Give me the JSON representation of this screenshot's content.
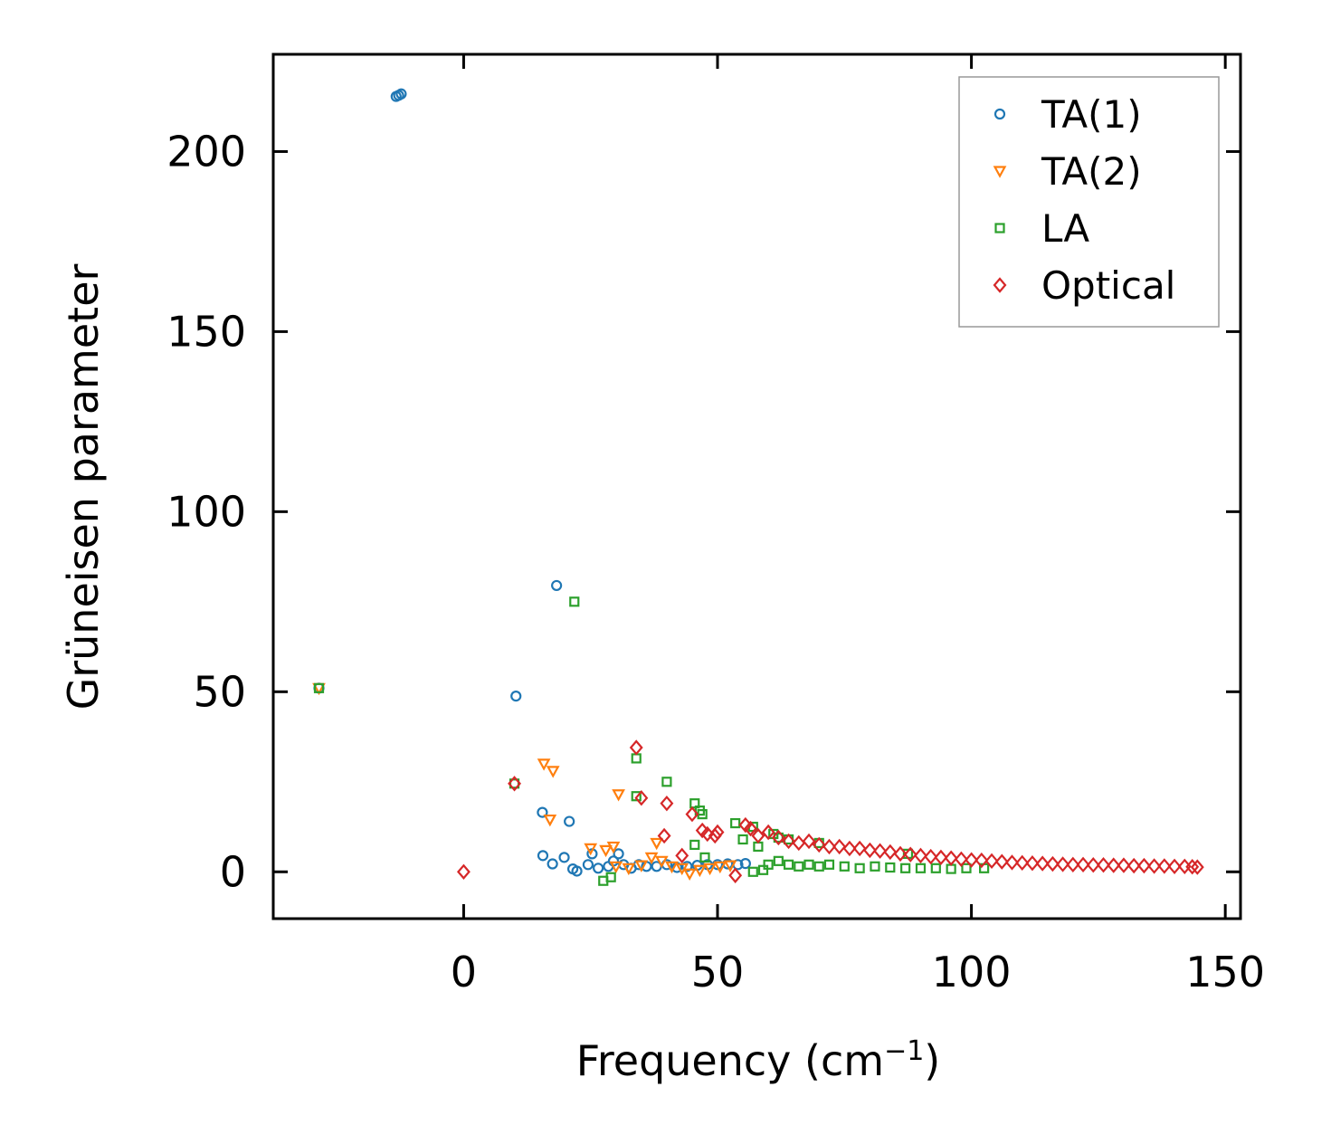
{
  "chart_data": {
    "type": "scatter",
    "title": "",
    "xlabel": "Frequency (cm",
    "xlabel_sup": "−1",
    "xlabel_close": ")",
    "ylabel": "Grüneisen parameter",
    "xlim": [
      -37.5,
      153
    ],
    "ylim": [
      -13,
      227
    ],
    "xticks": [
      0,
      50,
      100,
      150
    ],
    "yticks": [
      0,
      50,
      100,
      150,
      200
    ],
    "xtick_labels": [
      "0",
      "50",
      "100",
      "150"
    ],
    "ytick_labels": [
      "0",
      "50",
      "100",
      "150",
      "200"
    ],
    "legend_position": "top-right",
    "grid": false,
    "series": [
      {
        "name": "TA(1)",
        "marker": "circle",
        "color": "#1f77b4",
        "points": [
          [
            -13.3,
            215.3
          ],
          [
            -12.8,
            215.6
          ],
          [
            -12.3,
            216.0
          ],
          [
            -28.5,
            51.0
          ],
          [
            18.3,
            79.5
          ],
          [
            10.3,
            48.8
          ],
          [
            15.5,
            16.5
          ],
          [
            20.8,
            14.0
          ],
          [
            15.6,
            4.5
          ],
          [
            17.5,
            2.2
          ],
          [
            19.8,
            4.0
          ],
          [
            21.5,
            0.8
          ],
          [
            22.3,
            0.2
          ],
          [
            24.5,
            2.0
          ],
          [
            25.3,
            5.0
          ],
          [
            26.5,
            1.0
          ],
          [
            28.5,
            1.5
          ],
          [
            29.5,
            3.0
          ],
          [
            30.5,
            5.0
          ],
          [
            31.5,
            2.0
          ],
          [
            33.0,
            1.0
          ],
          [
            34.5,
            2.0
          ],
          [
            36.0,
            1.5
          ],
          [
            38.0,
            1.5
          ],
          [
            40.0,
            2.0
          ],
          [
            42.0,
            1.2
          ],
          [
            44.0,
            1.5
          ],
          [
            46.0,
            1.8
          ],
          [
            48.0,
            2.0
          ],
          [
            50.0,
            2.0
          ],
          [
            52.0,
            2.2
          ],
          [
            54.0,
            2.0
          ],
          [
            55.5,
            2.3
          ]
        ]
      },
      {
        "name": "TA(2)",
        "marker": "triangle-down",
        "color": "#ff7f0e",
        "points": [
          [
            -28.5,
            51.0
          ],
          [
            15.8,
            30.0
          ],
          [
            17.6,
            28.0
          ],
          [
            17.0,
            14.5
          ],
          [
            30.5,
            21.5
          ],
          [
            38.0,
            8.0
          ],
          [
            25.0,
            6.5
          ],
          [
            28.0,
            6.0
          ],
          [
            29.5,
            7.0
          ],
          [
            30.0,
            1.5
          ],
          [
            32.5,
            1.0
          ],
          [
            35.0,
            1.8
          ],
          [
            37.0,
            4.0
          ],
          [
            39.0,
            3.0
          ],
          [
            41.0,
            1.5
          ],
          [
            43.0,
            1.0
          ],
          [
            44.5,
            -0.5
          ],
          [
            46.5,
            0.5
          ],
          [
            48.5,
            1.0
          ],
          [
            50.5,
            1.5
          ],
          [
            52.5,
            1.8
          ]
        ]
      },
      {
        "name": "LA",
        "marker": "square",
        "color": "#2ca02c",
        "points": [
          [
            -28.5,
            51.0
          ],
          [
            21.8,
            75.0
          ],
          [
            10.0,
            24.5
          ],
          [
            34.0,
            31.5
          ],
          [
            34.0,
            21.0
          ],
          [
            40.0,
            25.0
          ],
          [
            45.5,
            19.0
          ],
          [
            46.5,
            17.0
          ],
          [
            47.0,
            16.0
          ],
          [
            53.5,
            13.5
          ],
          [
            55.0,
            9.0
          ],
          [
            57.0,
            12.5
          ],
          [
            58.0,
            7.0
          ],
          [
            61.0,
            10.5
          ],
          [
            62.0,
            9.5
          ],
          [
            64.0,
            9.0
          ],
          [
            70.0,
            8.0
          ],
          [
            87.5,
            5.0
          ],
          [
            27.5,
            -2.5
          ],
          [
            29.0,
            -1.5
          ],
          [
            45.5,
            7.5
          ],
          [
            47.5,
            4.0
          ],
          [
            57.0,
            0.0
          ],
          [
            59.0,
            0.5
          ],
          [
            60.0,
            2.0
          ],
          [
            62.0,
            3.0
          ],
          [
            64.0,
            2.0
          ],
          [
            66.0,
            1.5
          ],
          [
            68.0,
            2.0
          ],
          [
            70.0,
            1.5
          ],
          [
            72.0,
            2.0
          ],
          [
            75.0,
            1.5
          ],
          [
            78.0,
            1.0
          ],
          [
            81.0,
            1.5
          ],
          [
            84.0,
            1.2
          ],
          [
            87.0,
            1.0
          ],
          [
            90.0,
            1.0
          ],
          [
            93.0,
            1.0
          ],
          [
            96.0,
            0.8
          ],
          [
            99.0,
            1.0
          ],
          [
            102.5,
            1.0
          ]
        ]
      },
      {
        "name": "Optical",
        "marker": "diamond",
        "color": "#d62728",
        "points": [
          [
            0.0,
            0.0
          ],
          [
            10.0,
            24.5
          ],
          [
            34.0,
            34.5
          ],
          [
            35.0,
            20.5
          ],
          [
            40.0,
            19.0
          ],
          [
            39.5,
            10.0
          ],
          [
            43.0,
            4.5
          ],
          [
            45.0,
            16.0
          ],
          [
            47.0,
            11.5
          ],
          [
            48.0,
            10.5
          ],
          [
            49.5,
            10.0
          ],
          [
            50.0,
            11.0
          ],
          [
            53.5,
            -1.0
          ],
          [
            55.5,
            13.0
          ],
          [
            56.5,
            12.0
          ],
          [
            58.0,
            10.0
          ],
          [
            60.0,
            11.0
          ],
          [
            62.0,
            9.5
          ],
          [
            64.0,
            8.5
          ],
          [
            66.0,
            8.0
          ],
          [
            68.0,
            8.5
          ],
          [
            70.0,
            7.5
          ],
          [
            72.0,
            7.0
          ],
          [
            74.0,
            7.0
          ],
          [
            76.0,
            6.5
          ],
          [
            78.0,
            6.5
          ],
          [
            80.0,
            6.0
          ],
          [
            82.0,
            5.8
          ],
          [
            84.0,
            5.5
          ],
          [
            86.0,
            5.0
          ],
          [
            88.0,
            4.8
          ],
          [
            90.0,
            4.5
          ],
          [
            92.0,
            4.2
          ],
          [
            94.0,
            4.0
          ],
          [
            96.0,
            3.8
          ],
          [
            98.0,
            3.5
          ],
          [
            100.0,
            3.3
          ],
          [
            102.0,
            3.2
          ],
          [
            104.0,
            3.0
          ],
          [
            106.0,
            2.8
          ],
          [
            108.0,
            2.6
          ],
          [
            110.0,
            2.5
          ],
          [
            112.0,
            2.4
          ],
          [
            114.0,
            2.3
          ],
          [
            116.0,
            2.2
          ],
          [
            118.0,
            2.1
          ],
          [
            120.0,
            2.0
          ],
          [
            122.0,
            2.0
          ],
          [
            124.0,
            1.9
          ],
          [
            126.0,
            1.9
          ],
          [
            128.0,
            1.8
          ],
          [
            130.0,
            1.8
          ],
          [
            132.0,
            1.7
          ],
          [
            134.0,
            1.7
          ],
          [
            136.0,
            1.6
          ],
          [
            138.0,
            1.6
          ],
          [
            140.0,
            1.5
          ],
          [
            142.0,
            1.5
          ],
          [
            143.5,
            1.4
          ],
          [
            144.5,
            1.3
          ]
        ]
      }
    ]
  }
}
